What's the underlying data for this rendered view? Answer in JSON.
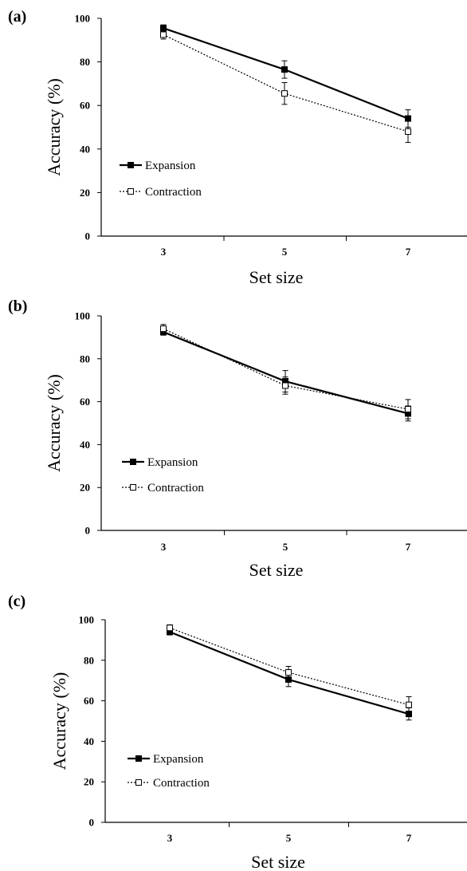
{
  "chart_data": [
    {
      "type": "line",
      "panel_label": "(a)",
      "xlabel": "Set size",
      "ylabel": "Accuracy (%)",
      "categories": [
        "3",
        "5",
        "7"
      ],
      "ylim": [
        0,
        100
      ],
      "yticks": [
        "0",
        "20",
        "40",
        "60",
        "80",
        "100"
      ],
      "grid": false,
      "legend_position": "bottom-left",
      "series": [
        {
          "name": "Expansion",
          "style": "solid",
          "marker": "filled-square",
          "values": [
            95.5,
            76.5,
            54
          ],
          "errors": [
            1.5,
            4,
            4
          ]
        },
        {
          "name": "Contraction",
          "style": "dotted",
          "marker": "open-square",
          "values": [
            92.5,
            65.5,
            48
          ],
          "errors": [
            2,
            5,
            5
          ]
        }
      ]
    },
    {
      "type": "line",
      "panel_label": "(b)",
      "xlabel": "Set size",
      "ylabel": "Accuracy (%)",
      "categories": [
        "3",
        "5",
        "7"
      ],
      "ylim": [
        0,
        100
      ],
      "yticks": [
        "0",
        "20",
        "40",
        "60",
        "80",
        "100"
      ],
      "grid": false,
      "legend_position": "bottom-left",
      "series": [
        {
          "name": "Expansion",
          "style": "solid",
          "marker": "filled-square",
          "values": [
            92.5,
            69.5,
            54.5
          ],
          "errors": [
            1.5,
            5,
            3.5
          ]
        },
        {
          "name": "Contraction",
          "style": "dotted",
          "marker": "open-square",
          "values": [
            94,
            67.5,
            56.5
          ],
          "errors": [
            2,
            4,
            4.5
          ]
        }
      ]
    },
    {
      "type": "line",
      "panel_label": "(c)",
      "xlabel": "Set size",
      "ylabel": "Accuracy (%)",
      "categories": [
        "3",
        "5",
        "7"
      ],
      "ylim": [
        0,
        100
      ],
      "yticks": [
        "0",
        "20",
        "40",
        "60",
        "80",
        "100"
      ],
      "grid": false,
      "legend_position": "bottom-left",
      "series": [
        {
          "name": "Expansion",
          "style": "solid",
          "marker": "filled-square",
          "values": [
            94,
            70.5,
            53.5
          ],
          "errors": [
            1.5,
            3.5,
            3
          ]
        },
        {
          "name": "Contraction",
          "style": "dotted",
          "marker": "open-square",
          "values": [
            96,
            74,
            58
          ],
          "errors": [
            1.5,
            3,
            4
          ]
        }
      ]
    }
  ]
}
